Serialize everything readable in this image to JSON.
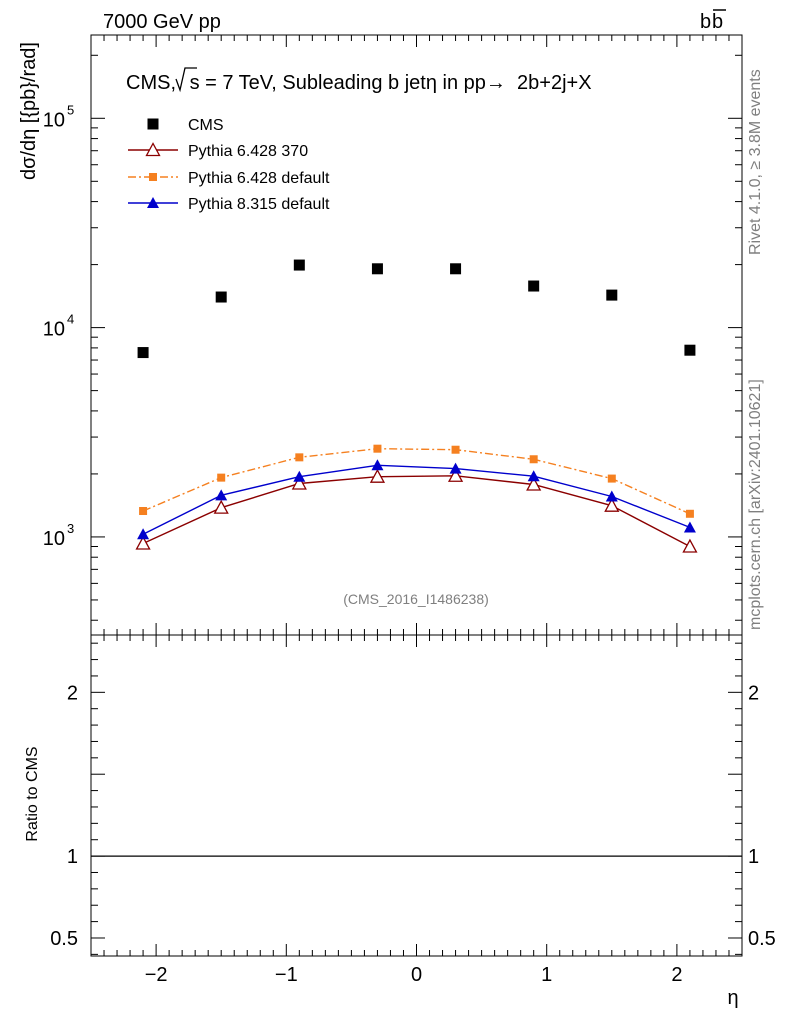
{
  "header": {
    "left": "7000 GeV pp",
    "right_main": "b",
    "right_bar": "b"
  },
  "side": {
    "rivet": "Rivet 4.1.0, ≥ 3.8M events",
    "mcplots": "mcplots.cern.ch [arXiv:2401.10621]"
  },
  "chart_data": {
    "type": "scatter",
    "title_prefix": "CMS, ",
    "title_sqrt": "s",
    "title_suffix": " = 7 TeV, Subleading b jetη in pp→  2b+2j+X",
    "watermark": "(CMS_2016_I1486238)",
    "xlabel": "η",
    "ylabel": "dσ/dη [{pb}/rad]",
    "ratio_ylabel": "Ratio to CMS",
    "xlim": [
      -2.5,
      2.5
    ],
    "ylim": [
      340,
      250000
    ],
    "ratio_ylim": [
      0.39,
      2.35
    ],
    "x": [
      -2.1,
      -1.5,
      -0.9,
      -0.3,
      0.3,
      0.9,
      1.5,
      2.1
    ],
    "x_ticks": [
      {
        "v": -2,
        "label": "−2"
      },
      {
        "v": -1,
        "label": "−1"
      },
      {
        "v": 0,
        "label": "0"
      },
      {
        "v": 1,
        "label": "1"
      },
      {
        "v": 2,
        "label": "2"
      }
    ],
    "y_major_ticks": [
      {
        "exp": 3,
        "label": "10",
        "sup": "3"
      },
      {
        "exp": 4,
        "label": "10",
        "sup": "4"
      },
      {
        "exp": 5,
        "label": "10",
        "sup": "5"
      }
    ],
    "ratio_ticks": [
      {
        "v": 0.5,
        "label": "0.5"
      },
      {
        "v": 1,
        "label": "1"
      },
      {
        "v": 2,
        "label": "2"
      }
    ],
    "series": [
      {
        "name": "CMS",
        "marker": "square",
        "color": "#000000",
        "line": "none",
        "values": [
          7600,
          14000,
          19900,
          19100,
          19100,
          15800,
          14300,
          7800
        ]
      },
      {
        "name": "Pythia 6.428 370",
        "marker": "triangle-open",
        "color": "#8b0000",
        "line": "solid",
        "values": [
          930,
          1380,
          1800,
          1940,
          1960,
          1780,
          1410,
          900
        ]
      },
      {
        "name": "Pythia 6.428 default",
        "marker": "square-small",
        "color": "#f58020",
        "line": "dashdot",
        "values": [
          1330,
          1920,
          2400,
          2640,
          2610,
          2350,
          1900,
          1290
        ]
      },
      {
        "name": "Pythia 8.315 default",
        "marker": "triangle",
        "color": "#0000cc",
        "line": "solid",
        "values": [
          1030,
          1580,
          1940,
          2200,
          2120,
          1950,
          1560,
          1110
        ]
      }
    ]
  }
}
